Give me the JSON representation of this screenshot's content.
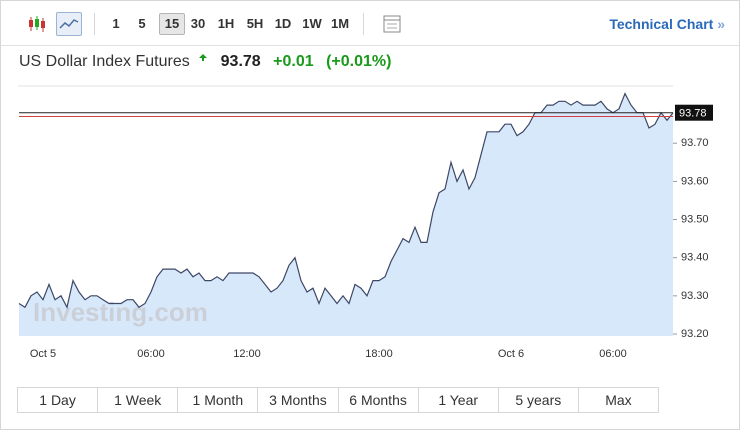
{
  "toolbar": {
    "intervals": [
      "1",
      "5",
      "15",
      "30",
      "1H",
      "5H",
      "1D",
      "1W",
      "1M"
    ],
    "selected": "15",
    "link": "Technical Chart",
    "link_arrow": "»"
  },
  "header": {
    "title": "US Dollar Index Futures",
    "price": "93.78",
    "change": "+0.01",
    "change_percent": "(+0.01%)"
  },
  "chart_data": {
    "type": "line",
    "color": "#3d4766",
    "fill": "#d8e8fb",
    "watermark": "Investing.com",
    "categories": [
      null,
      null,
      null,
      null,
      "Oct 5",
      null,
      null,
      null,
      null,
      null,
      null,
      null,
      null,
      null,
      null,
      null,
      null,
      null,
      null,
      null,
      null,
      null,
      "06:00",
      null,
      null,
      null,
      null,
      null,
      null,
      null,
      null,
      null,
      null,
      null,
      null,
      null,
      null,
      null,
      "12:00",
      null,
      null,
      null,
      null,
      null,
      null,
      null,
      null,
      null,
      null,
      null,
      null,
      null,
      null,
      null,
      null,
      null,
      null,
      null,
      null,
      null,
      "18:00",
      null,
      null,
      null,
      null,
      null,
      null,
      null,
      null,
      null,
      null,
      null,
      null,
      null,
      null,
      null,
      null,
      null,
      null,
      null,
      null,
      null,
      "Oct 6",
      null,
      null,
      null,
      null,
      null,
      null,
      null,
      null,
      null,
      null,
      null,
      null,
      null,
      null,
      null,
      null,
      "06:00",
      null,
      null,
      null,
      null,
      null,
      null,
      null,
      null,
      null,
      null
    ],
    "values": [
      93.28,
      93.27,
      93.3,
      93.31,
      93.29,
      93.33,
      93.29,
      93.3,
      93.27,
      93.34,
      93.31,
      93.29,
      93.3,
      93.3,
      93.29,
      93.28,
      93.28,
      93.28,
      93.29,
      93.29,
      93.27,
      93.28,
      93.31,
      93.35,
      93.37,
      93.37,
      93.37,
      93.36,
      93.37,
      93.35,
      93.36,
      93.34,
      93.34,
      93.35,
      93.34,
      93.36,
      93.36,
      93.36,
      93.36,
      93.36,
      93.35,
      93.33,
      93.31,
      93.32,
      93.34,
      93.38,
      93.4,
      93.34,
      93.31,
      93.32,
      93.28,
      93.32,
      93.3,
      93.28,
      93.3,
      93.28,
      93.33,
      93.32,
      93.3,
      93.34,
      93.34,
      93.35,
      93.39,
      93.42,
      93.45,
      93.44,
      93.48,
      93.44,
      93.44,
      93.52,
      93.57,
      93.58,
      93.65,
      93.6,
      93.63,
      93.58,
      93.61,
      93.67,
      93.73,
      93.73,
      93.73,
      93.75,
      93.75,
      93.72,
      93.73,
      93.75,
      93.78,
      93.78,
      93.8,
      93.8,
      93.81,
      93.81,
      93.8,
      93.81,
      93.8,
      93.8,
      93.8,
      93.81,
      93.79,
      93.78,
      93.79,
      93.83,
      93.8,
      93.78,
      93.78,
      93.74,
      93.75,
      93.78,
      93.76,
      93.78
    ],
    "ylim": [
      93.2,
      93.85
    ],
    "yticks": [
      {
        "value": 93.2,
        "label": "93.20"
      },
      {
        "value": 93.3,
        "label": "93.30"
      },
      {
        "value": 93.4,
        "label": "93.40"
      },
      {
        "value": 93.5,
        "label": "93.50"
      },
      {
        "value": 93.6,
        "label": "93.60"
      },
      {
        "value": 93.7,
        "label": "93.70"
      }
    ],
    "last_price": {
      "value": 93.78,
      "label": "93.78"
    },
    "reference_line": {
      "value": 93.77,
      "color": "#d04040"
    },
    "grid": false
  },
  "ranges": [
    "1 Day",
    "1 Week",
    "1 Month",
    "3 Months",
    "6 Months",
    "1 Year",
    "5 years",
    "Max"
  ]
}
